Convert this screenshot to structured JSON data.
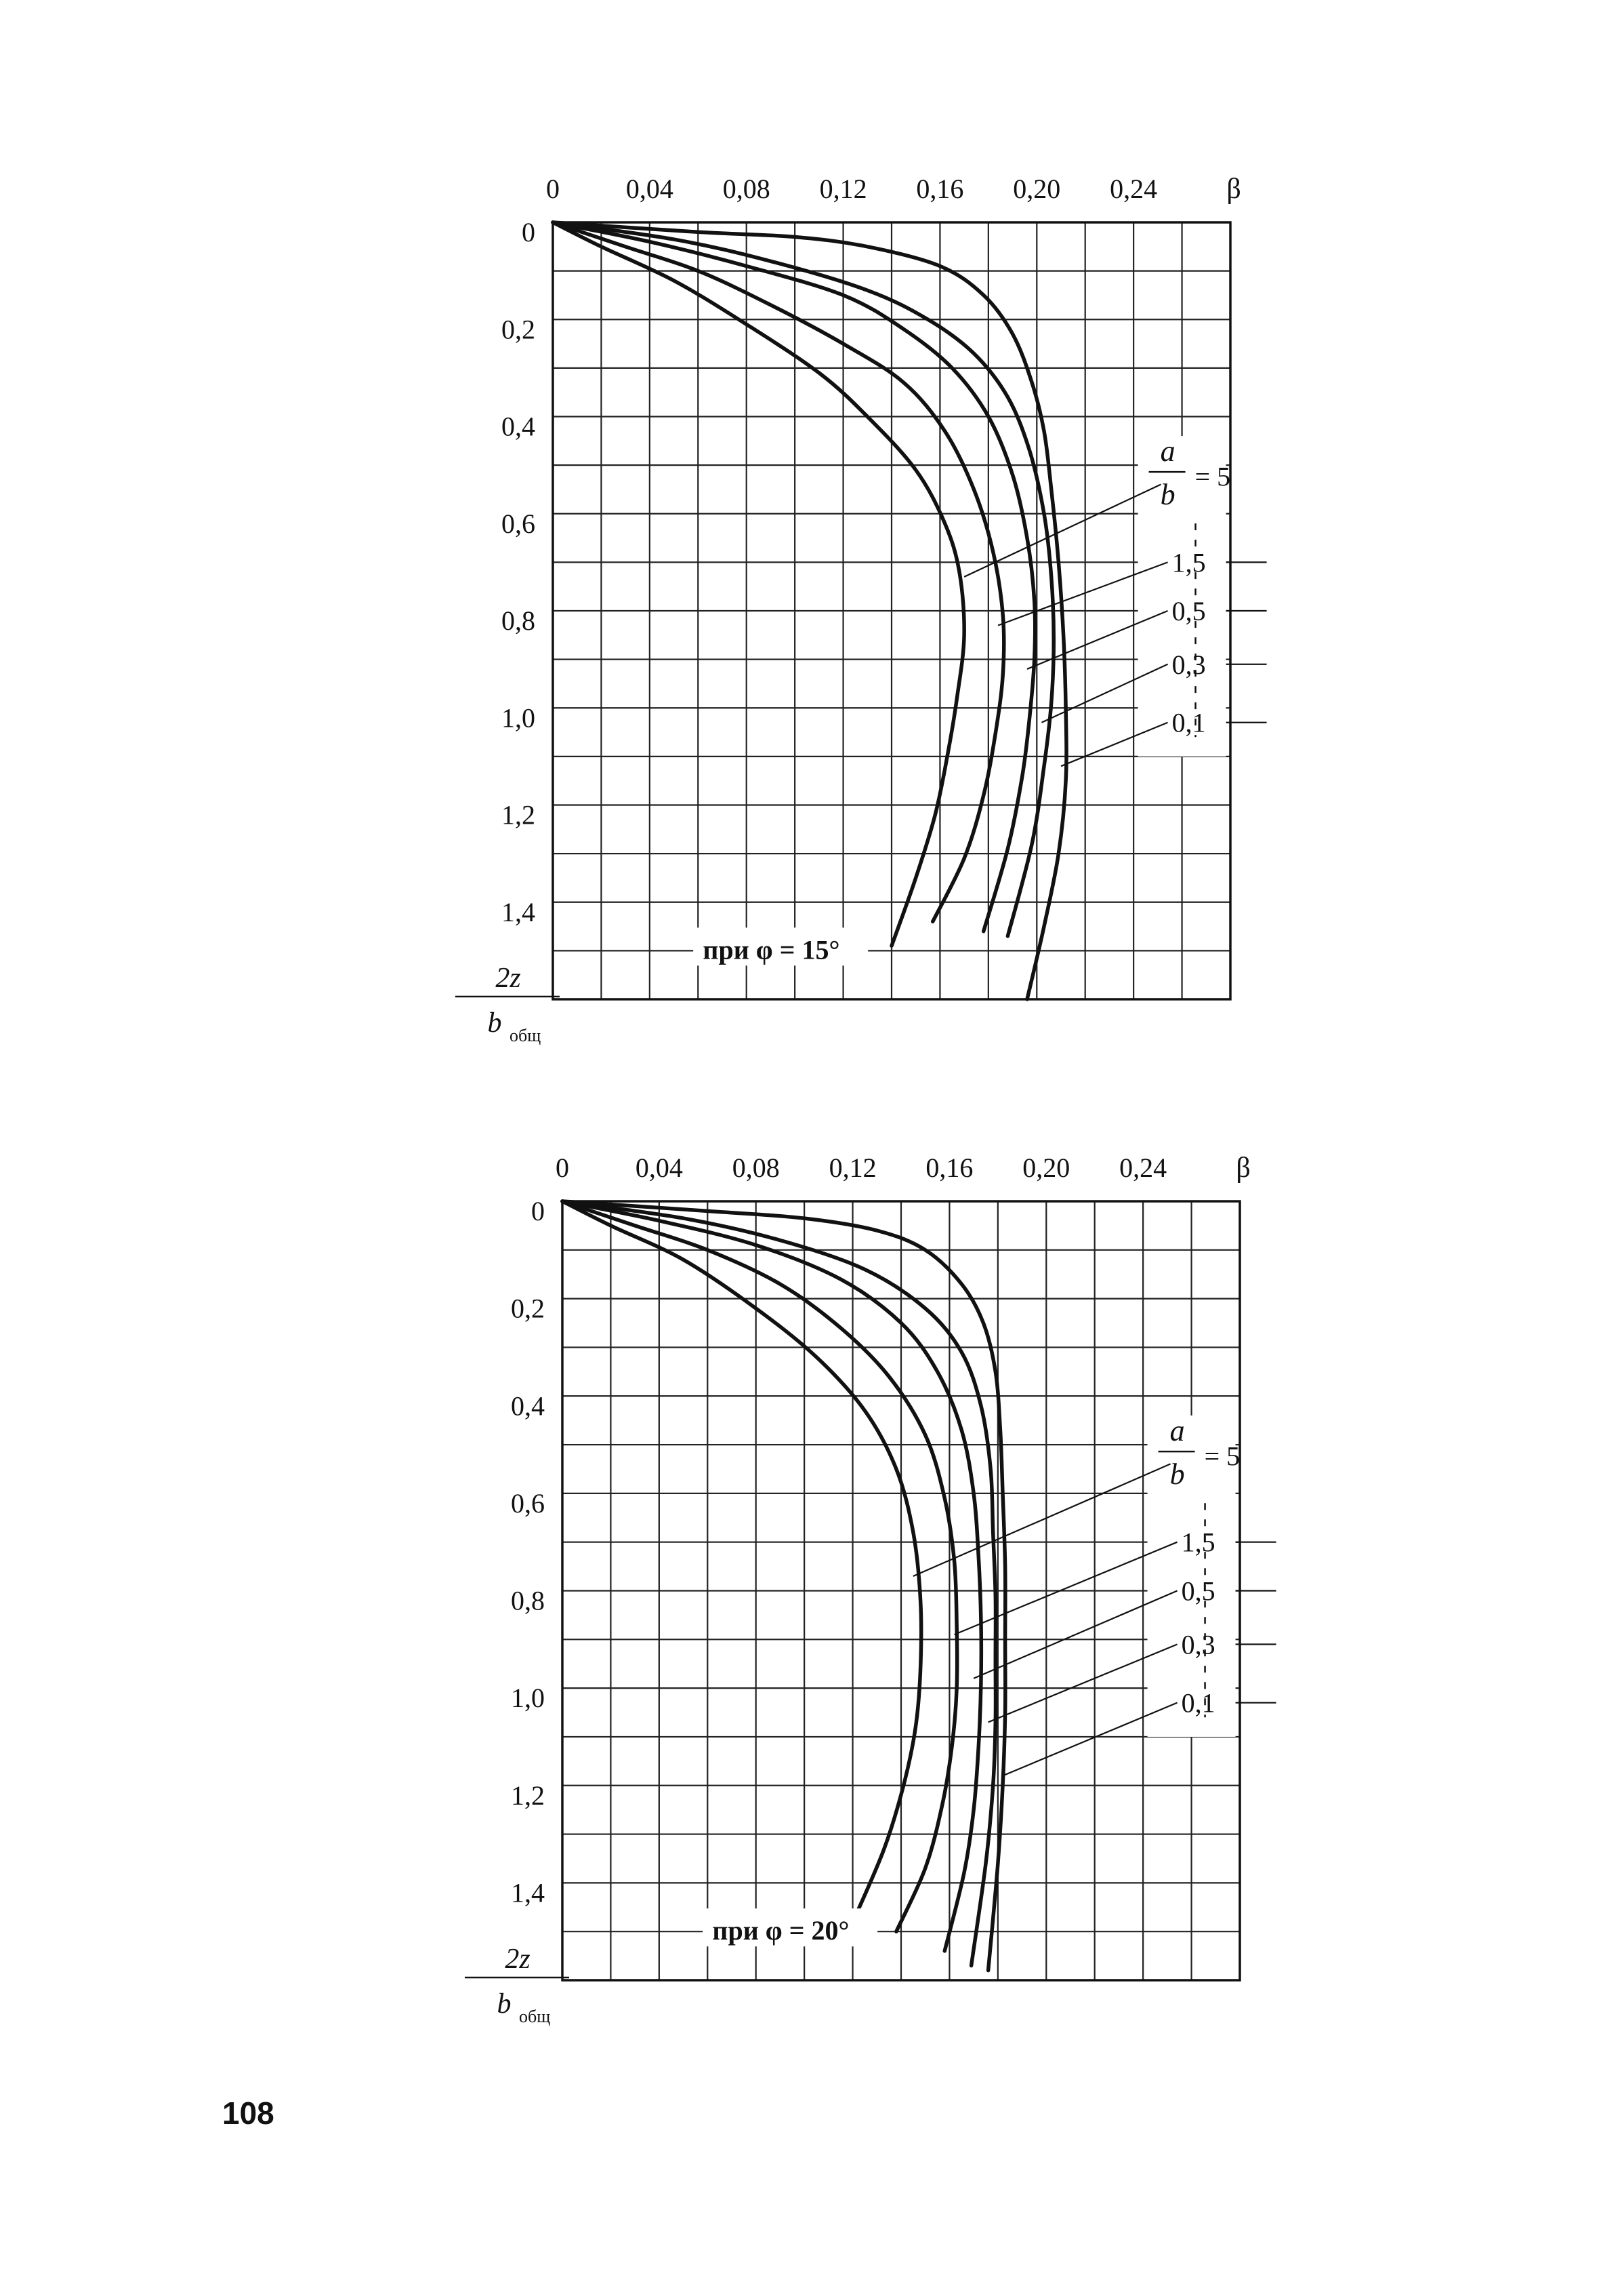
{
  "page_number": "108",
  "chart_data": [
    {
      "type": "line",
      "xaxis_label": "β",
      "x_ticks": [
        0,
        0.04,
        0.08,
        0.12,
        0.16,
        0.2,
        0.24
      ],
      "x_tick_labels": [
        "0",
        "0,04",
        "0,08",
        "0,12",
        "0,16",
        "0,20",
        "0,24"
      ],
      "xlim": [
        0,
        0.28
      ],
      "y_ticks": [
        0,
        0.2,
        0.4,
        0.6,
        0.8,
        1.0,
        1.2,
        1.4
      ],
      "y_tick_labels": [
        "0",
        "0,2",
        "0,4",
        "0,6",
        "0,8",
        "1,0",
        "1,2",
        "1,4"
      ],
      "ylim": [
        0,
        1.6
      ],
      "ylabel_num": "2z",
      "ylabel_den": "b",
      "ylabel_den_sub": "общ",
      "ratio_num": "a",
      "ratio_den": "b",
      "ratio_eq": "= 5",
      "note": "при φ = 15°",
      "grid": true,
      "series": [
        {
          "name": "5",
          "label": "= 5",
          "label_at": [
            0.253,
            0.52
          ],
          "leader_to": [
            0.17,
            0.73
          ],
          "points": [
            [
              0,
              0
            ],
            [
              0.02,
              0.05
            ],
            [
              0.05,
              0.12
            ],
            [
              0.08,
              0.21
            ],
            [
              0.11,
              0.31
            ],
            [
              0.13,
              0.4
            ],
            [
              0.15,
              0.51
            ],
            [
              0.162,
              0.62
            ],
            [
              0.168,
              0.72
            ],
            [
              0.17,
              0.85
            ],
            [
              0.167,
              0.98
            ],
            [
              0.163,
              1.1
            ],
            [
              0.158,
              1.22
            ],
            [
              0.15,
              1.35
            ],
            [
              0.14,
              1.49
            ]
          ]
        },
        {
          "name": "1,5",
          "label": "1,5",
          "label_at": [
            0.253,
            0.7
          ],
          "leader_to": [
            0.184,
            0.83
          ],
          "points": [
            [
              0,
              0
            ],
            [
              0.03,
              0.05
            ],
            [
              0.06,
              0.1
            ],
            [
              0.09,
              0.17
            ],
            [
              0.12,
              0.25
            ],
            [
              0.145,
              0.33
            ],
            [
              0.162,
              0.43
            ],
            [
              0.174,
              0.55
            ],
            [
              0.182,
              0.68
            ],
            [
              0.186,
              0.81
            ],
            [
              0.186,
              0.93
            ],
            [
              0.183,
              1.05
            ],
            [
              0.178,
              1.18
            ],
            [
              0.17,
              1.31
            ],
            [
              0.157,
              1.44
            ]
          ]
        },
        {
          "name": "0,5",
          "label": "0,5",
          "label_at": [
            0.253,
            0.8
          ],
          "leader_to": [
            0.196,
            0.92
          ],
          "points": [
            [
              0,
              0
            ],
            [
              0.04,
              0.04
            ],
            [
              0.08,
              0.09
            ],
            [
              0.12,
              0.15
            ],
            [
              0.145,
              0.22
            ],
            [
              0.165,
              0.3
            ],
            [
              0.18,
              0.4
            ],
            [
              0.19,
              0.52
            ],
            [
              0.196,
              0.65
            ],
            [
              0.199,
              0.78
            ],
            [
              0.199,
              0.9
            ],
            [
              0.197,
              1.02
            ],
            [
              0.194,
              1.14
            ],
            [
              0.188,
              1.29
            ],
            [
              0.178,
              1.46
            ]
          ]
        },
        {
          "name": "0,3",
          "label": "0,3",
          "label_at": [
            0.253,
            0.91
          ],
          "leader_to": [
            0.202,
            1.03
          ],
          "points": [
            [
              0,
              0
            ],
            [
              0.05,
              0.035
            ],
            [
              0.09,
              0.08
            ],
            [
              0.13,
              0.14
            ],
            [
              0.155,
              0.2
            ],
            [
              0.174,
              0.27
            ],
            [
              0.188,
              0.36
            ],
            [
              0.197,
              0.47
            ],
            [
              0.203,
              0.6
            ],
            [
              0.206,
              0.73
            ],
            [
              0.207,
              0.86
            ],
            [
              0.206,
              0.99
            ],
            [
              0.203,
              1.12
            ],
            [
              0.198,
              1.28
            ],
            [
              0.188,
              1.47
            ]
          ]
        },
        {
          "name": "0,1",
          "label": "0,1",
          "label_at": [
            0.253,
            1.03
          ],
          "leader_to": [
            0.21,
            1.12
          ],
          "points": [
            [
              0,
              0
            ],
            [
              0.06,
              0.02
            ],
            [
              0.1,
              0.03
            ],
            [
              0.13,
              0.05
            ],
            [
              0.16,
              0.09
            ],
            [
              0.178,
              0.15
            ],
            [
              0.19,
              0.23
            ],
            [
              0.198,
              0.33
            ],
            [
              0.203,
              0.43
            ],
            [
              0.206,
              0.55
            ],
            [
              0.209,
              0.7
            ],
            [
              0.211,
              0.85
            ],
            [
              0.212,
              1.0
            ],
            [
              0.212,
              1.15
            ],
            [
              0.209,
              1.3
            ],
            [
              0.203,
              1.45
            ],
            [
              0.196,
              1.6
            ]
          ]
        }
      ]
    },
    {
      "type": "line",
      "xaxis_label": "β",
      "x_ticks": [
        0,
        0.04,
        0.08,
        0.12,
        0.16,
        0.2,
        0.24
      ],
      "x_tick_labels": [
        "0",
        "0,04",
        "0,08",
        "0,12",
        "0,16",
        "0,20",
        "0,24"
      ],
      "xlim": [
        0,
        0.28
      ],
      "y_ticks": [
        0,
        0.2,
        0.4,
        0.6,
        0.8,
        1.0,
        1.2,
        1.4
      ],
      "y_tick_labels": [
        "0",
        "0,2",
        "0,4",
        "0,6",
        "0,8",
        "1,0",
        "1,2",
        "1,4"
      ],
      "ylim": [
        0,
        1.6
      ],
      "ylabel_num": "2z",
      "ylabel_den": "b",
      "ylabel_den_sub": "общ",
      "ratio_num": "a",
      "ratio_den": "b",
      "ratio_eq": "= 5",
      "note": "при φ = 20°",
      "grid": true,
      "series": [
        {
          "name": "5",
          "label": "= 5",
          "label_at": [
            0.253,
            0.52
          ],
          "leader_to": [
            0.145,
            0.77
          ],
          "points": [
            [
              0,
              0
            ],
            [
              0.02,
              0.05
            ],
            [
              0.05,
              0.12
            ],
            [
              0.08,
              0.22
            ],
            [
              0.105,
              0.32
            ],
            [
              0.125,
              0.43
            ],
            [
              0.138,
              0.55
            ],
            [
              0.145,
              0.68
            ],
            [
              0.148,
              0.82
            ],
            [
              0.148,
              0.96
            ],
            [
              0.146,
              1.08
            ],
            [
              0.141,
              1.2
            ],
            [
              0.133,
              1.33
            ],
            [
              0.121,
              1.47
            ]
          ]
        },
        {
          "name": "1,5",
          "label": "1,5",
          "label_at": [
            0.253,
            0.7
          ],
          "leader_to": [
            0.162,
            0.89
          ],
          "points": [
            [
              0,
              0
            ],
            [
              0.03,
              0.05
            ],
            [
              0.06,
              0.1
            ],
            [
              0.09,
              0.17
            ],
            [
              0.115,
              0.26
            ],
            [
              0.135,
              0.36
            ],
            [
              0.15,
              0.48
            ],
            [
              0.158,
              0.61
            ],
            [
              0.162,
              0.74
            ],
            [
              0.163,
              0.87
            ],
            [
              0.163,
              1.0
            ],
            [
              0.161,
              1.12
            ],
            [
              0.157,
              1.24
            ],
            [
              0.15,
              1.37
            ],
            [
              0.138,
              1.5
            ]
          ]
        },
        {
          "name": "0,5",
          "label": "0,5",
          "label_at": [
            0.253,
            0.8
          ],
          "leader_to": [
            0.17,
            0.98
          ],
          "points": [
            [
              0,
              0
            ],
            [
              0.04,
              0.04
            ],
            [
              0.08,
              0.09
            ],
            [
              0.115,
              0.16
            ],
            [
              0.14,
              0.25
            ],
            [
              0.155,
              0.35
            ],
            [
              0.165,
              0.47
            ],
            [
              0.17,
              0.6
            ],
            [
              0.172,
              0.73
            ],
            [
              0.173,
              0.86
            ],
            [
              0.173,
              0.99
            ],
            [
              0.172,
              1.12
            ],
            [
              0.17,
              1.25
            ],
            [
              0.166,
              1.38
            ],
            [
              0.158,
              1.54
            ]
          ]
        },
        {
          "name": "0,3",
          "label": "0,3",
          "label_at": [
            0.253,
            0.91
          ],
          "leader_to": [
            0.176,
            1.07
          ],
          "points": [
            [
              0,
              0
            ],
            [
              0.05,
              0.035
            ],
            [
              0.09,
              0.08
            ],
            [
              0.125,
              0.14
            ],
            [
              0.15,
              0.22
            ],
            [
              0.165,
              0.31
            ],
            [
              0.173,
              0.42
            ],
            [
              0.177,
              0.55
            ],
            [
              0.178,
              0.68
            ],
            [
              0.179,
              0.81
            ],
            [
              0.179,
              0.94
            ],
            [
              0.179,
              1.07
            ],
            [
              0.178,
              1.2
            ],
            [
              0.175,
              1.36
            ],
            [
              0.169,
              1.57
            ]
          ]
        },
        {
          "name": "0,1",
          "label": "0,1",
          "label_at": [
            0.253,
            1.03
          ],
          "leader_to": [
            0.182,
            1.18
          ],
          "points": [
            [
              0,
              0
            ],
            [
              0.06,
              0.02
            ],
            [
              0.1,
              0.035
            ],
            [
              0.13,
              0.06
            ],
            [
              0.15,
              0.1
            ],
            [
              0.165,
              0.17
            ],
            [
              0.174,
              0.25
            ],
            [
              0.179,
              0.35
            ],
            [
              0.181,
              0.47
            ],
            [
              0.182,
              0.6
            ],
            [
              0.183,
              0.75
            ],
            [
              0.183,
              0.9
            ],
            [
              0.183,
              1.05
            ],
            [
              0.182,
              1.2
            ],
            [
              0.18,
              1.36
            ],
            [
              0.176,
              1.58
            ]
          ]
        }
      ]
    }
  ]
}
